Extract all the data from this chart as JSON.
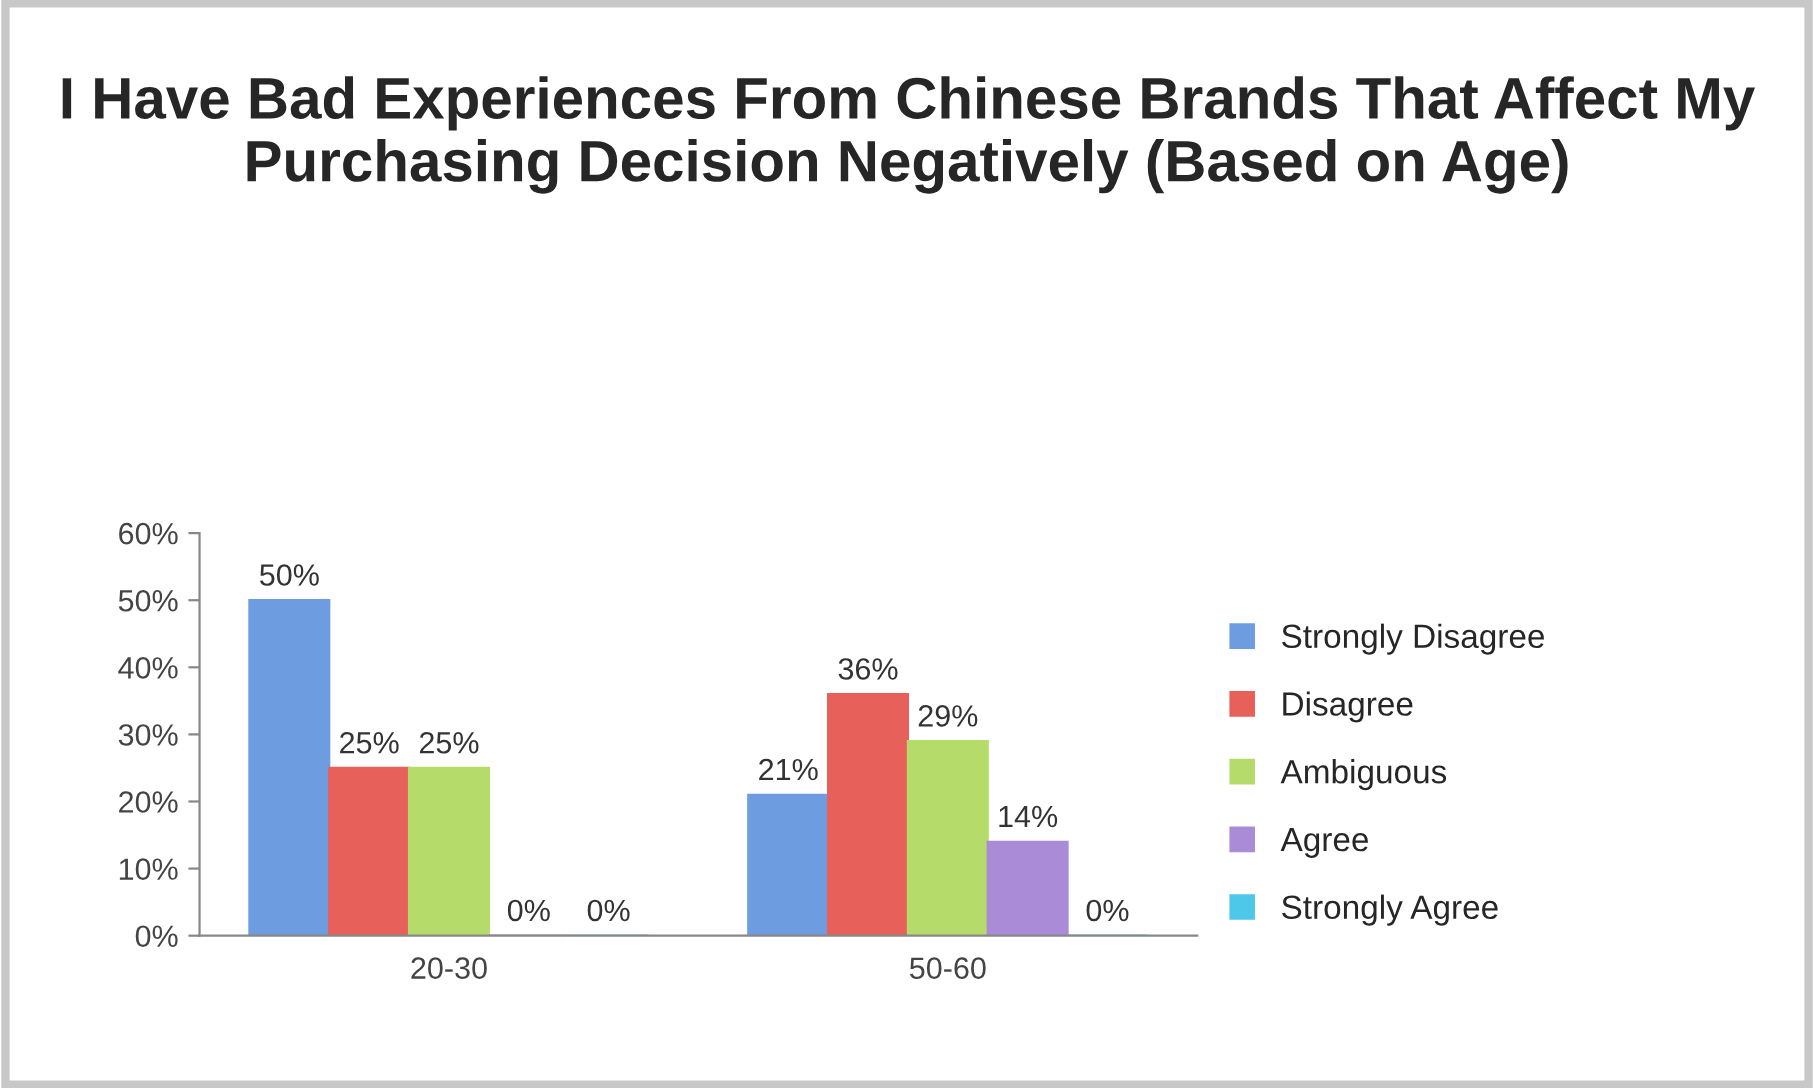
{
  "chart_data": {
    "type": "bar",
    "title": "I Have Bad Experiences From Chinese Brands That Affect My Purchasing Decision Negatively (Based on Age)",
    "categories": [
      "20-30",
      "50-60"
    ],
    "series": [
      {
        "name": "Strongly Disagree",
        "color": "#6d9de0",
        "values": [
          50,
          21
        ],
        "value_labels": [
          "50%",
          "21%"
        ]
      },
      {
        "name": "Disagree",
        "color": "#e8605a",
        "values": [
          25,
          36
        ],
        "value_labels": [
          "25%",
          "36%"
        ]
      },
      {
        "name": "Ambiguous",
        "color": "#b5dc6a",
        "values": [
          25,
          29
        ],
        "value_labels": [
          "25%",
          "29%"
        ]
      },
      {
        "name": "Agree",
        "color": "#a98bd8",
        "values": [
          0,
          14
        ],
        "value_labels": [
          "0%",
          "14%"
        ]
      },
      {
        "name": "Strongly Agree",
        "color": "#4dc8e8",
        "values": [
          0,
          0
        ],
        "value_labels": [
          "0%",
          "0%"
        ]
      }
    ],
    "ylim": [
      0,
      60
    ],
    "yticks": [
      {
        "value": 0,
        "label": "0%"
      },
      {
        "value": 10,
        "label": "10%"
      },
      {
        "value": 20,
        "label": "20%"
      },
      {
        "value": 30,
        "label": "30%"
      },
      {
        "value": 40,
        "label": "40%"
      },
      {
        "value": 50,
        "label": "50%"
      },
      {
        "value": 60,
        "label": "60%"
      }
    ],
    "grid": false,
    "legend": "right"
  }
}
